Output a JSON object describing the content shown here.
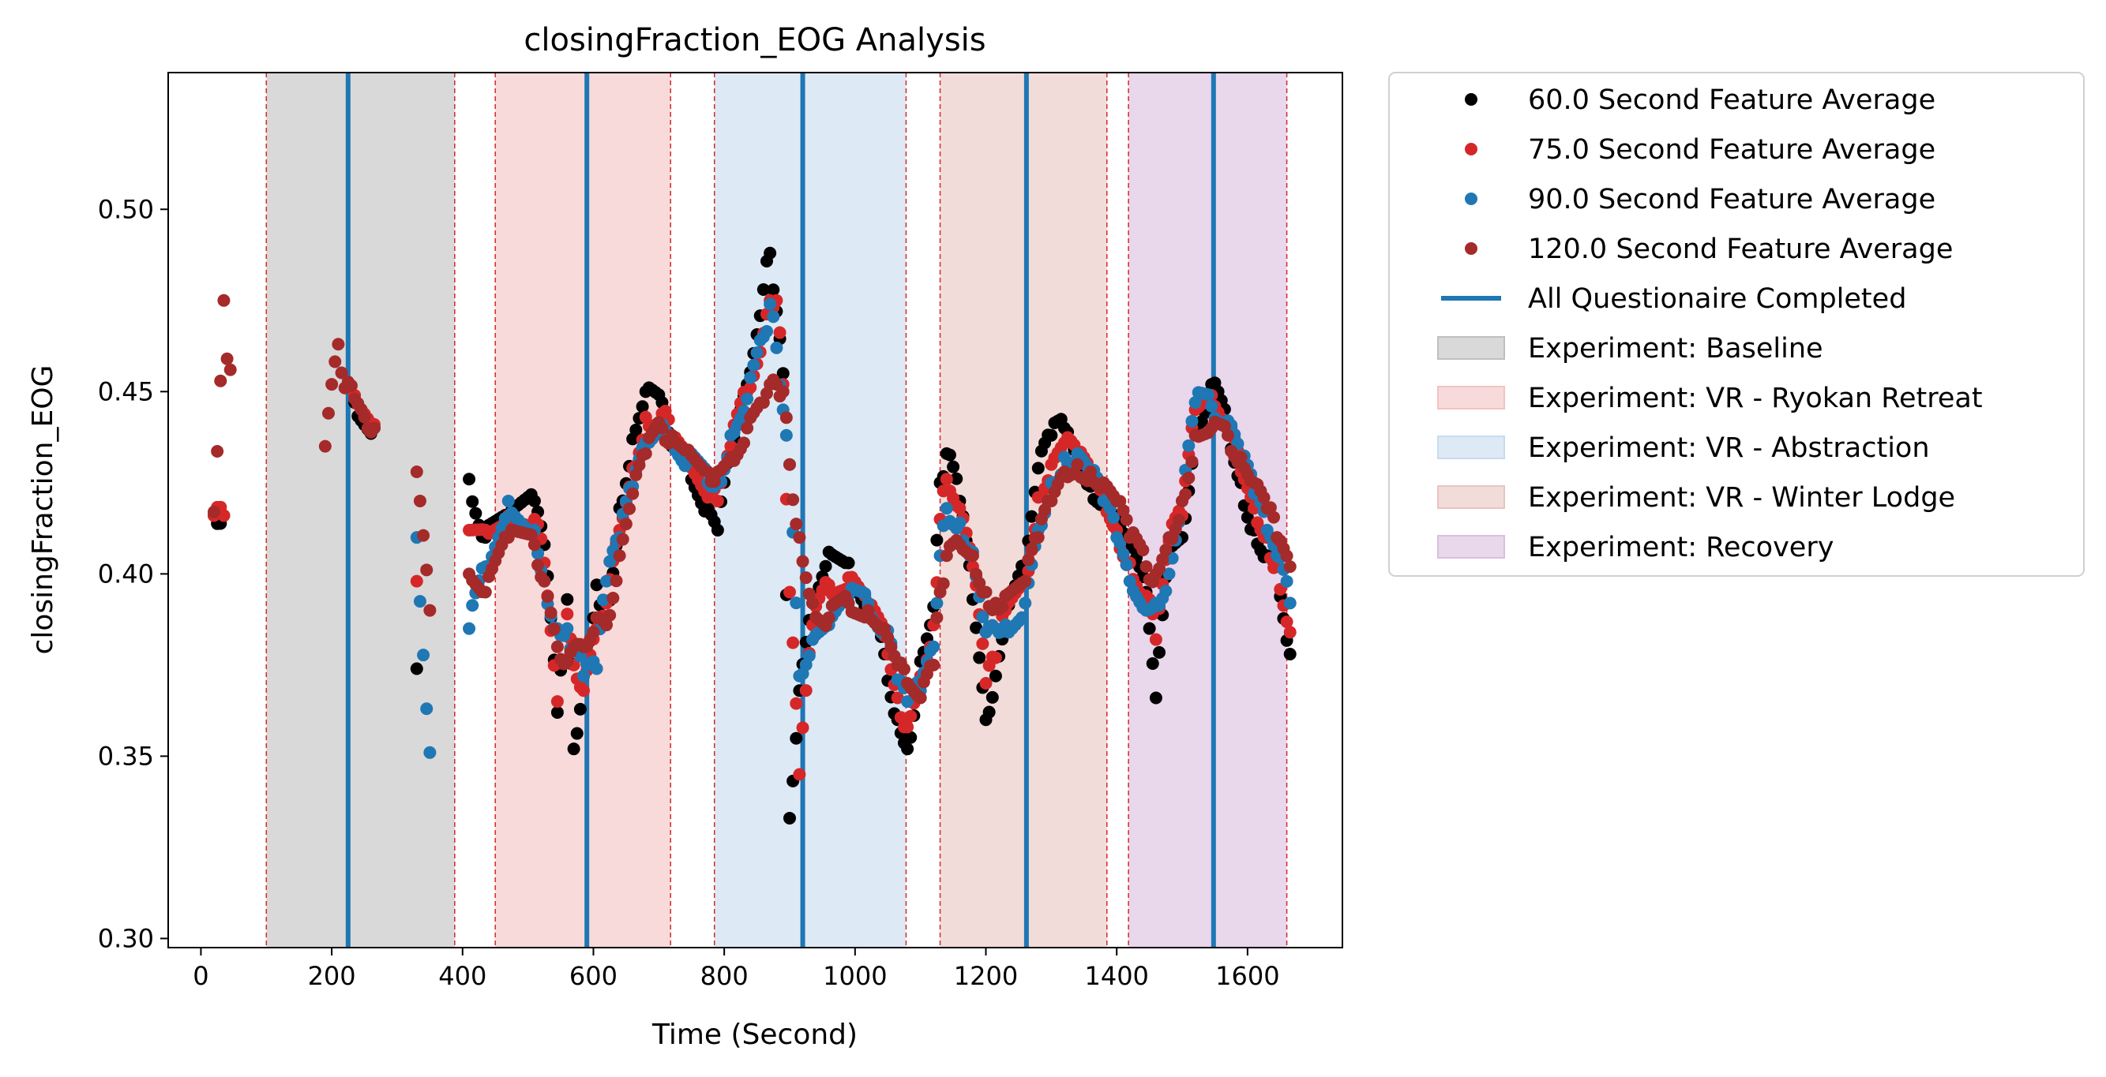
{
  "chart_data": {
    "type": "scatter",
    "title": "closingFraction_EOG Analysis",
    "xlabel": "Time (Second)",
    "ylabel": "closingFraction_EOG",
    "xlim": [
      -50,
      1745
    ],
    "ylim": [
      0.2975,
      0.5375
    ],
    "x_ticks": [
      0,
      200,
      400,
      600,
      800,
      1000,
      1200,
      1400,
      1600
    ],
    "x_tick_labels": [
      "0",
      "200",
      "400",
      "600",
      "800",
      "1000",
      "1200",
      "1400",
      "1600"
    ],
    "y_ticks": [
      0.3,
      0.35,
      0.4,
      0.45,
      0.5
    ],
    "y_tick_labels": [
      "0.30",
      "0.35",
      "0.40",
      "0.45",
      "0.50"
    ],
    "grid": false,
    "legend_position": "outside-right-top",
    "series": [
      {
        "name": "60.0 Second Feature Average",
        "color": "#000000",
        "anchors": [
          [
            20,
            0.416
          ],
          [
            35,
            0.416
          ],
          [
            235,
            0.447
          ],
          [
            265,
            0.44
          ],
          [
            330,
            0.374
          ],
          [
            410,
            0.426
          ],
          [
            435,
            0.41
          ],
          [
            470,
            0.414
          ],
          [
            510,
            0.42
          ],
          [
            525,
            0.408
          ],
          [
            545,
            0.362
          ],
          [
            560,
            0.393
          ],
          [
            570,
            0.352
          ],
          [
            585,
            0.372
          ],
          [
            605,
            0.397
          ],
          [
            620,
            0.388
          ],
          [
            640,
            0.418
          ],
          [
            660,
            0.437
          ],
          [
            680,
            0.45
          ],
          [
            705,
            0.447
          ],
          [
            720,
            0.435
          ],
          [
            745,
            0.431
          ],
          [
            775,
            0.418
          ],
          [
            790,
            0.412
          ],
          [
            810,
            0.433
          ],
          [
            835,
            0.452
          ],
          [
            860,
            0.478
          ],
          [
            870,
            0.488
          ],
          [
            880,
            0.472
          ],
          [
            890,
            0.455
          ],
          [
            900,
            0.333
          ],
          [
            915,
            0.368
          ],
          [
            935,
            0.392
          ],
          [
            960,
            0.406
          ],
          [
            990,
            0.403
          ],
          [
            1020,
            0.392
          ],
          [
            1045,
            0.378
          ],
          [
            1065,
            0.36
          ],
          [
            1080,
            0.352
          ],
          [
            1100,
            0.376
          ],
          [
            1120,
            0.391
          ],
          [
            1130,
            0.425
          ],
          [
            1140,
            0.433
          ],
          [
            1160,
            0.42
          ],
          [
            1180,
            0.393
          ],
          [
            1200,
            0.36
          ],
          [
            1215,
            0.372
          ],
          [
            1230,
            0.386
          ],
          [
            1260,
            0.402
          ],
          [
            1280,
            0.429
          ],
          [
            1300,
            0.438
          ],
          [
            1320,
            0.44
          ],
          [
            1340,
            0.43
          ],
          [
            1360,
            0.424
          ],
          [
            1380,
            0.421
          ],
          [
            1400,
            0.416
          ],
          [
            1420,
            0.408
          ],
          [
            1445,
            0.395
          ],
          [
            1460,
            0.366
          ],
          [
            1480,
            0.407
          ],
          [
            1500,
            0.41
          ],
          [
            1520,
            0.44
          ],
          [
            1545,
            0.452
          ],
          [
            1570,
            0.44
          ],
          [
            1590,
            0.425
          ],
          [
            1610,
            0.412
          ],
          [
            1630,
            0.405
          ],
          [
            1645,
            0.402
          ],
          [
            1665,
            0.378
          ]
        ]
      },
      {
        "name": "75.0 Second Feature Average",
        "color": "#d62728",
        "anchors": [
          [
            20,
            0.416
          ],
          [
            35,
            0.416
          ],
          [
            235,
            0.449
          ],
          [
            265,
            0.441
          ],
          [
            330,
            0.398
          ],
          [
            410,
            0.412
          ],
          [
            435,
            0.412
          ],
          [
            470,
            0.416
          ],
          [
            510,
            0.415
          ],
          [
            525,
            0.403
          ],
          [
            545,
            0.365
          ],
          [
            560,
            0.389
          ],
          [
            570,
            0.375
          ],
          [
            585,
            0.368
          ],
          [
            605,
            0.385
          ],
          [
            620,
            0.392
          ],
          [
            640,
            0.412
          ],
          [
            660,
            0.429
          ],
          [
            680,
            0.443
          ],
          [
            705,
            0.444
          ],
          [
            720,
            0.437
          ],
          [
            745,
            0.431
          ],
          [
            775,
            0.421
          ],
          [
            790,
            0.42
          ],
          [
            810,
            0.435
          ],
          [
            835,
            0.45
          ],
          [
            860,
            0.466
          ],
          [
            870,
            0.475
          ],
          [
            880,
            0.475
          ],
          [
            890,
            0.452
          ],
          [
            900,
            0.395
          ],
          [
            915,
            0.345
          ],
          [
            935,
            0.386
          ],
          [
            960,
            0.397
          ],
          [
            990,
            0.399
          ],
          [
            1020,
            0.391
          ],
          [
            1045,
            0.383
          ],
          [
            1065,
            0.366
          ],
          [
            1080,
            0.358
          ],
          [
            1100,
            0.372
          ],
          [
            1120,
            0.386
          ],
          [
            1130,
            0.415
          ],
          [
            1140,
            0.426
          ],
          [
            1160,
            0.418
          ],
          [
            1180,
            0.402
          ],
          [
            1200,
            0.37
          ],
          [
            1215,
            0.377
          ],
          [
            1230,
            0.39
          ],
          [
            1260,
            0.398
          ],
          [
            1280,
            0.421
          ],
          [
            1300,
            0.43
          ],
          [
            1320,
            0.436
          ],
          [
            1340,
            0.432
          ],
          [
            1360,
            0.426
          ],
          [
            1380,
            0.42
          ],
          [
            1400,
            0.412
          ],
          [
            1420,
            0.403
          ],
          [
            1445,
            0.394
          ],
          [
            1460,
            0.382
          ],
          [
            1480,
            0.409
          ],
          [
            1500,
            0.416
          ],
          [
            1520,
            0.445
          ],
          [
            1545,
            0.449
          ],
          [
            1570,
            0.441
          ],
          [
            1590,
            0.428
          ],
          [
            1610,
            0.418
          ],
          [
            1630,
            0.41
          ],
          [
            1645,
            0.402
          ],
          [
            1665,
            0.384
          ]
        ]
      },
      {
        "name": "90.0 Second Feature Average",
        "color": "#1f77b4",
        "anchors": [
          [
            330,
            0.41
          ],
          [
            350,
            0.351
          ],
          [
            410,
            0.385
          ],
          [
            435,
            0.402
          ],
          [
            470,
            0.42
          ],
          [
            510,
            0.412
          ],
          [
            525,
            0.398
          ],
          [
            545,
            0.385
          ],
          [
            560,
            0.385
          ],
          [
            570,
            0.38
          ],
          [
            585,
            0.372
          ],
          [
            605,
            0.374
          ],
          [
            620,
            0.398
          ],
          [
            640,
            0.41
          ],
          [
            660,
            0.424
          ],
          [
            680,
            0.436
          ],
          [
            705,
            0.441
          ],
          [
            720,
            0.438
          ],
          [
            745,
            0.431
          ],
          [
            775,
            0.425
          ],
          [
            790,
            0.425
          ],
          [
            810,
            0.438
          ],
          [
            835,
            0.448
          ],
          [
            860,
            0.465
          ],
          [
            870,
            0.474
          ],
          [
            880,
            0.462
          ],
          [
            890,
            0.445
          ],
          [
            900,
            0.43
          ],
          [
            915,
            0.372
          ],
          [
            935,
            0.382
          ],
          [
            960,
            0.386
          ],
          [
            990,
            0.394
          ],
          [
            1020,
            0.392
          ],
          [
            1045,
            0.385
          ],
          [
            1065,
            0.371
          ],
          [
            1080,
            0.365
          ],
          [
            1100,
            0.368
          ],
          [
            1120,
            0.38
          ],
          [
            1130,
            0.405
          ],
          [
            1140,
            0.418
          ],
          [
            1160,
            0.414
          ],
          [
            1180,
            0.406
          ],
          [
            1200,
            0.384
          ],
          [
            1215,
            0.385
          ],
          [
            1230,
            0.386
          ],
          [
            1260,
            0.392
          ],
          [
            1280,
            0.412
          ],
          [
            1300,
            0.425
          ],
          [
            1320,
            0.432
          ],
          [
            1340,
            0.433
          ],
          [
            1360,
            0.428
          ],
          [
            1380,
            0.42
          ],
          [
            1400,
            0.41
          ],
          [
            1420,
            0.398
          ],
          [
            1445,
            0.39
          ],
          [
            1460,
            0.392
          ],
          [
            1480,
            0.4
          ],
          [
            1500,
            0.42
          ],
          [
            1520,
            0.447
          ],
          [
            1545,
            0.446
          ],
          [
            1570,
            0.442
          ],
          [
            1590,
            0.432
          ],
          [
            1610,
            0.422
          ],
          [
            1630,
            0.412
          ],
          [
            1645,
            0.405
          ],
          [
            1665,
            0.392
          ]
        ]
      },
      {
        "name": "120.0 Second Feature Average",
        "color": "#a52a2a",
        "anchors": [
          [
            20,
            0.417
          ],
          [
            35,
            0.475
          ],
          [
            40,
            0.459
          ],
          [
            45,
            0.456
          ],
          [
            190,
            0.435
          ],
          [
            200,
            0.452
          ],
          [
            210,
            0.463
          ],
          [
            220,
            0.451
          ],
          [
            235,
            0.448
          ],
          [
            250,
            0.443
          ],
          [
            265,
            0.44
          ],
          [
            330,
            0.428
          ],
          [
            350,
            0.39
          ],
          [
            410,
            0.4
          ],
          [
            435,
            0.395
          ],
          [
            470,
            0.41
          ],
          [
            510,
            0.408
          ],
          [
            525,
            0.398
          ],
          [
            545,
            0.38
          ],
          [
            560,
            0.376
          ],
          [
            570,
            0.38
          ],
          [
            585,
            0.38
          ],
          [
            605,
            0.388
          ],
          [
            620,
            0.386
          ],
          [
            640,
            0.405
          ],
          [
            660,
            0.422
          ],
          [
            680,
            0.433
          ],
          [
            705,
            0.44
          ],
          [
            720,
            0.438
          ],
          [
            745,
            0.434
          ],
          [
            775,
            0.428
          ],
          [
            790,
            0.428
          ],
          [
            810,
            0.432
          ],
          [
            835,
            0.44
          ],
          [
            860,
            0.447
          ],
          [
            870,
            0.452
          ],
          [
            880,
            0.452
          ],
          [
            890,
            0.45
          ],
          [
            900,
            0.43
          ],
          [
            915,
            0.41
          ],
          [
            935,
            0.392
          ],
          [
            960,
            0.388
          ],
          [
            990,
            0.392
          ],
          [
            1020,
            0.39
          ],
          [
            1045,
            0.385
          ],
          [
            1065,
            0.375
          ],
          [
            1080,
            0.37
          ],
          [
            1100,
            0.366
          ],
          [
            1120,
            0.375
          ],
          [
            1130,
            0.395
          ],
          [
            1140,
            0.405
          ],
          [
            1160,
            0.408
          ],
          [
            1180,
            0.405
          ],
          [
            1200,
            0.395
          ],
          [
            1215,
            0.392
          ],
          [
            1230,
            0.394
          ],
          [
            1260,
            0.398
          ],
          [
            1280,
            0.41
          ],
          [
            1300,
            0.42
          ],
          [
            1320,
            0.428
          ],
          [
            1340,
            0.43
          ],
          [
            1360,
            0.428
          ],
          [
            1380,
            0.425
          ],
          [
            1400,
            0.42
          ],
          [
            1420,
            0.41
          ],
          [
            1445,
            0.402
          ],
          [
            1460,
            0.4
          ],
          [
            1480,
            0.41
          ],
          [
            1500,
            0.42
          ],
          [
            1520,
            0.438
          ],
          [
            1545,
            0.44
          ],
          [
            1570,
            0.438
          ],
          [
            1590,
            0.432
          ],
          [
            1610,
            0.425
          ],
          [
            1630,
            0.418
          ],
          [
            1645,
            0.41
          ],
          [
            1665,
            0.402
          ]
        ]
      }
    ],
    "questionnaire_line": {
      "name": "All Questionaire Completed",
      "color": "#1f77b4",
      "x": [
        225,
        590,
        920,
        1262,
        1548
      ]
    },
    "experiment_spans": [
      {
        "name": "Experiment: Baseline",
        "color": "#bfbfbf",
        "x0": 100,
        "x1": 388
      },
      {
        "name": "Experiment: VR - Ryokan Retreat",
        "color": "#f4c2c2",
        "x0": 450,
        "x1": 718
      },
      {
        "name": "Experiment: VR - Abstraction",
        "color": "#c6dbef",
        "x0": 785,
        "x1": 1078
      },
      {
        "name": "Experiment: VR - Winter Lodge",
        "color": "#e8c4c0",
        "x0": 1130,
        "x1": 1385
      },
      {
        "name": "Experiment: Recovery",
        "color": "#dbbde0",
        "x0": 1418,
        "x1": 1660
      }
    ],
    "span_edge_color": "#d62728"
  }
}
